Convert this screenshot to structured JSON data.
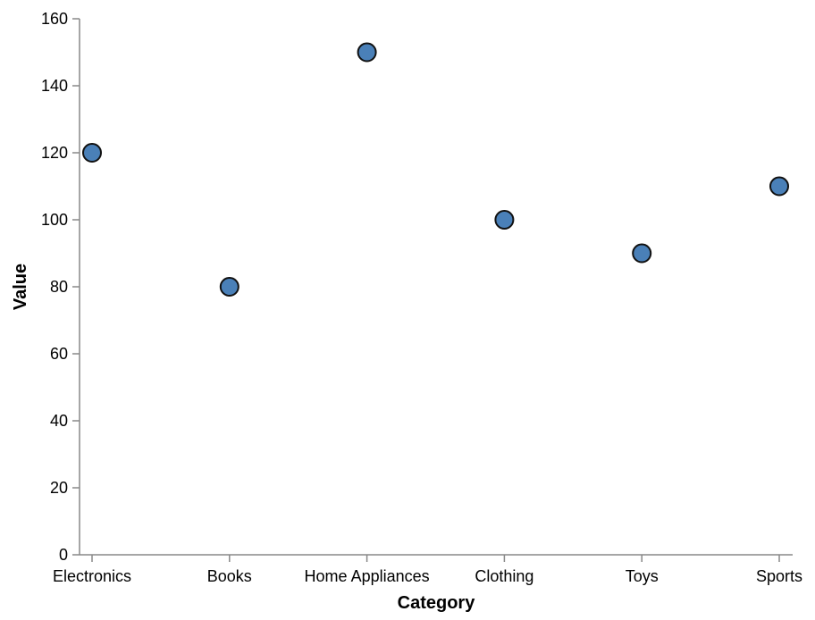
{
  "chart_data": {
    "type": "scatter",
    "categories": [
      "Electronics",
      "Books",
      "Home Appliances",
      "Clothing",
      "Toys",
      "Sports"
    ],
    "values": [
      120,
      80,
      150,
      100,
      90,
      110
    ],
    "xlabel": "Category",
    "ylabel": "Value",
    "ylim": [
      0,
      160
    ],
    "yticks": [
      0,
      20,
      40,
      60,
      80,
      100,
      120,
      140,
      160
    ],
    "grid": false,
    "colors": {
      "point_fill": "#4a80b8",
      "point_stroke": "#111111",
      "axis": "#888888"
    }
  }
}
